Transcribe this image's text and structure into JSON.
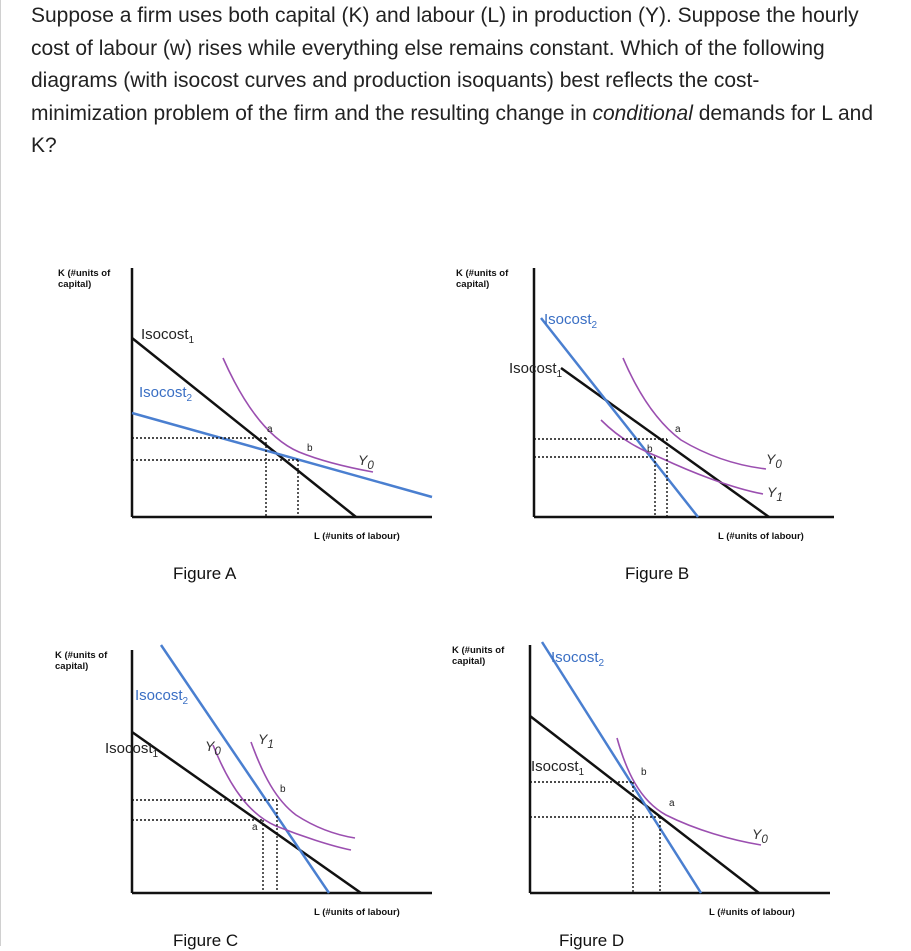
{
  "question": {
    "line1": "Suppose a firm uses both capital (K) and labour (L) in production (Y). Suppose the hourly",
    "line2": "cost of labour (w) rises while everything else remains constant. Which of the following",
    "line3": "diagrams (with isocost curves and production isoquants) best reflects the cost-",
    "line4a": "minimization problem of the firm and the resulting change in ",
    "line4b": "conditional",
    "line4c": " demands for L and",
    "line5": "K?"
  },
  "axis": {
    "k_label_1": "K (#units of",
    "k_label_2": "capital)",
    "l_label": "L (#units of labour)"
  },
  "figures": {
    "a": {
      "title": "Figure A",
      "isocost1": "Isocost",
      "isocost1_sub": "1",
      "isocost2": "Isocost",
      "isocost2_sub": "2",
      "point_a": "a",
      "point_b": "b",
      "y0": "Y",
      "y0_sub": "0"
    },
    "b": {
      "title": "Figure B",
      "isocost2": "Isocost",
      "isocost2_sub": "2",
      "isocost1": "Isocost",
      "isocost1_sub": "1",
      "point_a": "a",
      "point_b": "b",
      "y0": "Y",
      "y0_sub": "0",
      "y1": "Y",
      "y1_sub": "1"
    },
    "c": {
      "title": "Figure C",
      "isocost2": "Isocost",
      "isocost2_sub": "2",
      "isocost1": "Isocost",
      "isocost1_sub": "1",
      "y0": "Y",
      "y0_sub": "0",
      "y1": "Y",
      "y1_sub": "1",
      "point_a": "a",
      "point_b": "b"
    },
    "d": {
      "title": "Figure D",
      "isocost2": "Isocost",
      "isocost2_sub": "2",
      "isocost1": "Isocost",
      "isocost1_sub": "1",
      "point_a": "a",
      "point_b": "b",
      "y0": "Y",
      "y0_sub": "0"
    }
  },
  "colors": {
    "black_line": "#111111",
    "blue_line": "#4a7fd0",
    "purple_curve": "#9b4fb0"
  }
}
